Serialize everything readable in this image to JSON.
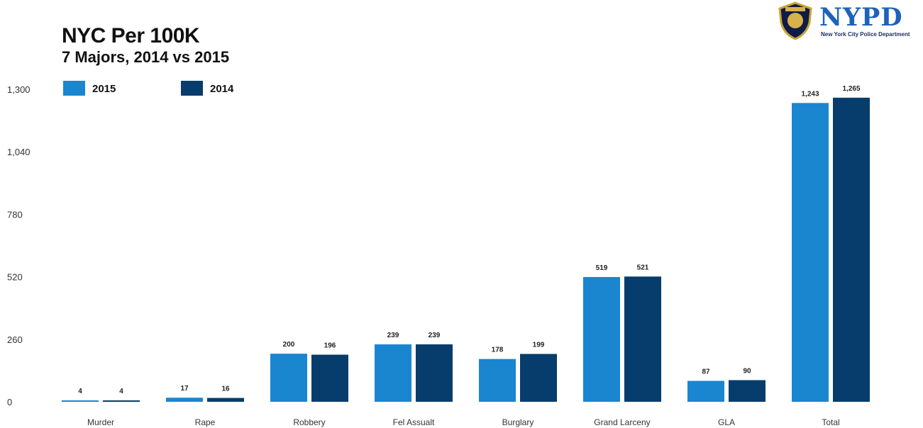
{
  "header": {
    "title": "NYC Per 100K",
    "subtitle": "7 Majors,  2014 vs 2015"
  },
  "logo": {
    "wordmark": "NYPD",
    "tagline": "New York City Police Department",
    "badge_icon": "police-shield-icon"
  },
  "colors": {
    "2015": "#1a86cf",
    "2014": "#063d6c"
  },
  "chart_data": {
    "type": "bar",
    "title": "NYC Per 100K",
    "subtitle": "7 Majors,  2014 vs 2015",
    "xlabel": "",
    "ylabel": "",
    "categories": [
      "Murder",
      "Rape",
      "Robbery",
      "Fel Assualt",
      "Burglary",
      "Grand Larceny",
      "GLA",
      "Total"
    ],
    "series": [
      {
        "name": "2015",
        "values": [
          4,
          17,
          200,
          239,
          178,
          519,
          87,
          1243
        ],
        "labels": [
          "4",
          "17",
          "200",
          "239",
          "178",
          "519",
          "87",
          "1,243"
        ]
      },
      {
        "name": "2014",
        "values": [
          4,
          16,
          196,
          239,
          199,
          521,
          90,
          1265
        ],
        "labels": [
          "4",
          "16",
          "196",
          "239",
          "199",
          "521",
          "90",
          "1,265"
        ]
      }
    ],
    "ylim": [
      0,
      1300
    ],
    "yticks": [
      0,
      260,
      520,
      780,
      1040,
      1300
    ],
    "ytick_labels": [
      "0",
      "260",
      "520",
      "780",
      "1,040",
      "1,300"
    ],
    "grid": false,
    "legend": "top-left"
  }
}
